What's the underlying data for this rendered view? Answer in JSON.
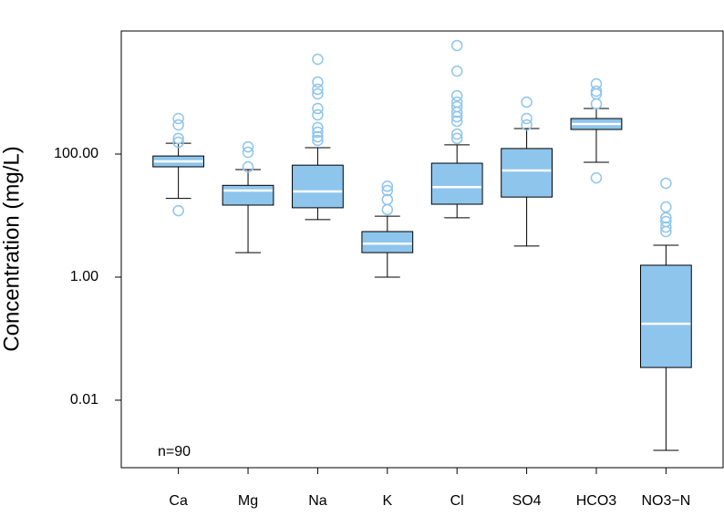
{
  "chart_data": {
    "type": "box",
    "y_label": "Concentration (mg/L)",
    "annotation": "n=90",
    "log_y": true,
    "ylim": [
      0.0008,
      10000
    ],
    "yticks": [
      {
        "value": 100,
        "label": "100.00"
      },
      {
        "value": 1,
        "label": "1.00"
      },
      0.01
    ],
    "box_color": "#8ec5ec",
    "median_color": "#ffffff",
    "outlier_color": "#8ec5ec",
    "categories": [
      "Ca",
      "Mg",
      "Na",
      "K",
      "Cl",
      "SO4",
      "HCO3",
      "NO3−N"
    ],
    "boxes": [
      {
        "min": 19,
        "q1": 62,
        "median": 76,
        "q3": 93,
        "max": 150,
        "outliers": [
          378,
          298,
          179,
          156,
          12
        ]
      },
      {
        "min": 2.5,
        "q1": 14.8,
        "median": 25.5,
        "q3": 31,
        "max": 56,
        "outliers": [
          131,
          107,
          62
        ]
      },
      {
        "min": 8.6,
        "q1": 13.4,
        "median": 24.7,
        "q3": 66,
        "max": 127,
        "outliers": [
          3475,
          1480,
          1130,
          950,
          550,
          433,
          269,
          227,
          191,
          167
        ]
      },
      {
        "min": 1.0,
        "q1": 2.5,
        "median": 3.5,
        "q3": 5.5,
        "max": 9.8,
        "outliers": [
          30,
          25.5,
          18.2,
          12.5
        ]
      },
      {
        "min": 9.2,
        "q1": 15.3,
        "median": 29,
        "q3": 71,
        "max": 141,
        "outliers": [
          5800,
          2230,
          887,
          698,
          590,
          480,
          404,
          341,
          212,
          179
        ]
      },
      {
        "min": 3.2,
        "q1": 20,
        "median": 54,
        "q3": 123,
        "max": 260,
        "outliers": [
          698,
          378,
          298
        ]
      },
      {
        "min": 73.5,
        "q1": 251,
        "median": 308,
        "q3": 378,
        "max": 550,
        "outliers": [
          1380,
          1052,
          950,
          653,
          41
        ]
      },
      {
        "min": 0.00153,
        "q1": 0.034,
        "median": 0.175,
        "q3": 1.56,
        "max": 3.3,
        "outliers": [
          33.6,
          13.8,
          9.2,
          8.0,
          6.5,
          5.5
        ]
      }
    ]
  }
}
